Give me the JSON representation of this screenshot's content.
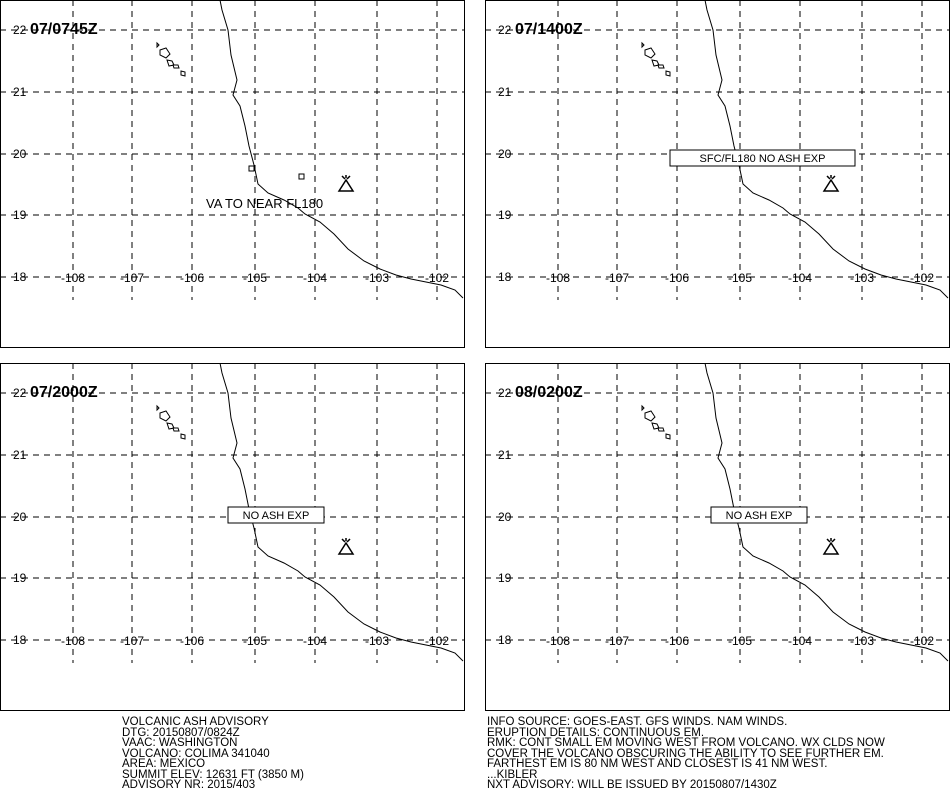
{
  "panels": [
    {
      "time": "07/0745Z",
      "annotation": "VA TO NEAR FL180"
    },
    {
      "time": "07/1400Z",
      "annotation": "SFC/FL180 NO ASH EXP"
    },
    {
      "time": "07/2000Z",
      "annotation": "NO ASH EXP"
    },
    {
      "time": "08/0200Z",
      "annotation": "NO ASH EXP"
    }
  ],
  "grid": {
    "lat_labels": [
      "22",
      "21",
      "20",
      "19",
      "18"
    ],
    "lon_labels": [
      "-108",
      "-107",
      "-106",
      "-105",
      "-104",
      "-103",
      "-102"
    ]
  },
  "advisory_left": [
    "VOLCANIC ASH ADVISORY",
    "DTG: 20150807/0824Z",
    "VAAC: WASHINGTON",
    "VOLCANO: COLIMA 341040",
    "AREA: MEXICO",
    "SUMMIT ELEV: 12631 FT (3850 M)",
    "ADVISORY NR: 2015/403"
  ],
  "advisory_right": [
    "INFO SOURCE: GOES-EAST. GFS WINDS. NAM WINDS.",
    "ERUPTION DETAILS: CONTINUOUS EM.",
    "RMK: CONT SMALL EM MOVING WEST FROM VOLCANO. WX CLDS NOW",
    "COVER THE VOLCANO OBSCURING THE ABILITY TO SEE FURTHER EM.",
    "FARTHEST EM IS 80 NM WEST AND CLOSEST IS 41 NM WEST.",
    "...KIBLER",
    "NXT ADVISORY: WILL BE ISSUED BY 20150807/1430Z"
  ]
}
